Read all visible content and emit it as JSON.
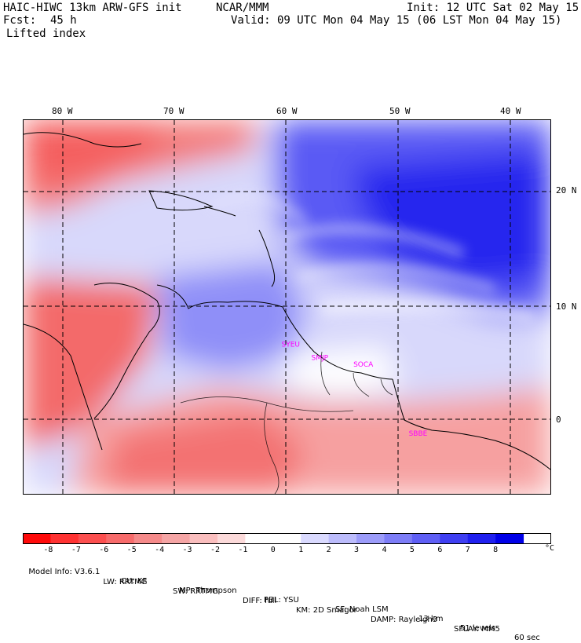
{
  "header": {
    "model_line": "HAIC-HIWC 13km ARW-GFS init",
    "center": "NCAR/MMM",
    "init": "Init: 12 UTC Sat 02 May 15",
    "fcst_label": "Fcst:",
    "fcst_hours": "45 h",
    "valid": "Valid: 09 UTC Mon 04 May 15 (06 LST Mon 04 May 15)",
    "field": "Lifted index"
  },
  "map": {
    "lon_labels": [
      "80 W",
      "70 W",
      "60 W",
      "50 W",
      "40 W"
    ],
    "lon_values": [
      -80,
      -70,
      -60,
      -50,
      -40
    ],
    "lat_labels": [
      "20 N",
      "10 N",
      "0"
    ],
    "lat_values": [
      20,
      10,
      0
    ],
    "lon_range": [
      -83.2,
      -35.6
    ],
    "lat_range": [
      -6.6,
      26.9
    ],
    "stations": [
      {
        "code": "SYEU",
        "lon": -59.9,
        "lat": 6.6
      },
      {
        "code": "SMJP",
        "lon": -57.2,
        "lat": 5.4
      },
      {
        "code": "SOCA",
        "lon": -53.4,
        "lat": 4.8
      },
      {
        "code": "SBBE",
        "lon": -48.4,
        "lat": -1.4
      }
    ],
    "station_color": "#ff00ff"
  },
  "colorbar": {
    "labels": [
      "-8",
      "-7",
      "-6",
      "-5",
      "-4",
      "-3",
      "-2",
      "-1",
      "0",
      "1",
      "2",
      "3",
      "4",
      "5",
      "6",
      "7",
      "8"
    ],
    "unit": "°C",
    "colors": [
      "#ff0a0a",
      "#ff3232",
      "#fc4f4f",
      "#f76b6b",
      "#f58a8a",
      "#f5a5a5",
      "#fabebe",
      "#fcdada",
      "#ffffff",
      "#dadaff",
      "#bcbcfc",
      "#9c9cfa",
      "#7d7df7",
      "#5f5ff5",
      "#3f3ff2",
      "#2020ef",
      "#0000e8"
    ]
  },
  "footer": {
    "line1": [
      {
        "text": "Model Info: V3.6.1"
      },
      {
        "text": "CU: KF"
      },
      {
        "text": "MP: Thompson"
      },
      {
        "text": "PBL: YSU"
      },
      {
        "text": "SF: Noah LSM"
      },
      {
        "text": "13 km"
      },
      {
        "text": "51 levels"
      },
      {
        "text": "60 sec"
      }
    ],
    "line2": [
      {
        "text": "LW: RRTMG"
      },
      {
        "text": "SW: RRTMG"
      },
      {
        "text": "DIFF: full"
      },
      {
        "text": "KM: 2D Smagor"
      },
      {
        "text": "DAMP: Rayleigh3"
      },
      {
        "text": "SFLAY: MM5"
      }
    ]
  }
}
